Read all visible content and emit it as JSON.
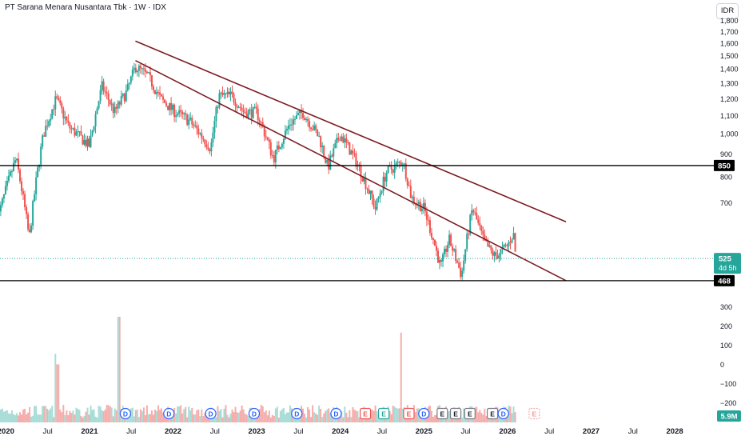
{
  "header": {
    "title": "PT Sarana Menara Nusantara Tbk · 1W · IDX",
    "currency_button": "IDR"
  },
  "chart_data": {
    "type": "candlestick",
    "y_axis": {
      "min": 440,
      "max": 1850,
      "ticks": [
        700,
        800,
        900,
        1000,
        1100,
        1200,
        1300,
        1400,
        1500,
        1600,
        1700,
        1800
      ]
    },
    "x_axis": {
      "ticks": [
        "2020",
        "Jul",
        "2021",
        "Jul",
        "2022",
        "Jul",
        "2023",
        "Jul",
        "2024",
        "Jul",
        "2025",
        "Jul",
        "2026",
        "Jul",
        "2027",
        "Jul",
        "2028"
      ]
    },
    "price_series_anchors": [
      {
        "t": 2019.9,
        "v": 640
      },
      {
        "t": 2020.12,
        "v": 880
      },
      {
        "t": 2020.28,
        "v": 580
      },
      {
        "t": 2020.45,
        "v": 1000
      },
      {
        "t": 2020.6,
        "v": 1200
      },
      {
        "t": 2020.75,
        "v": 1040
      },
      {
        "t": 2021.0,
        "v": 940
      },
      {
        "t": 2021.15,
        "v": 1280
      },
      {
        "t": 2021.3,
        "v": 1120
      },
      {
        "t": 2021.45,
        "v": 1250
      },
      {
        "t": 2021.55,
        "v": 1420
      },
      {
        "t": 2021.7,
        "v": 1350
      },
      {
        "t": 2021.85,
        "v": 1200
      },
      {
        "t": 2022.0,
        "v": 1130
      },
      {
        "t": 2022.2,
        "v": 1070
      },
      {
        "t": 2022.45,
        "v": 930
      },
      {
        "t": 2022.55,
        "v": 1220
      },
      {
        "t": 2022.7,
        "v": 1220
      },
      {
        "t": 2022.85,
        "v": 1120
      },
      {
        "t": 2023.0,
        "v": 1120
      },
      {
        "t": 2023.2,
        "v": 880
      },
      {
        "t": 2023.4,
        "v": 1060
      },
      {
        "t": 2023.55,
        "v": 1120
      },
      {
        "t": 2023.75,
        "v": 980
      },
      {
        "t": 2023.85,
        "v": 840
      },
      {
        "t": 2024.0,
        "v": 1000
      },
      {
        "t": 2024.2,
        "v": 860
      },
      {
        "t": 2024.42,
        "v": 680
      },
      {
        "t": 2024.55,
        "v": 820
      },
      {
        "t": 2024.75,
        "v": 870
      },
      {
        "t": 2024.85,
        "v": 720
      },
      {
        "t": 2025.0,
        "v": 680
      },
      {
        "t": 2025.2,
        "v": 500
      },
      {
        "t": 2025.3,
        "v": 580
      },
      {
        "t": 2025.45,
        "v": 480
      },
      {
        "t": 2025.58,
        "v": 680
      },
      {
        "t": 2025.72,
        "v": 570
      },
      {
        "t": 2025.85,
        "v": 530
      },
      {
        "t": 2026.0,
        "v": 560
      },
      {
        "t": 2026.07,
        "v": 600
      },
      {
        "t": 2026.1,
        "v": 525
      }
    ],
    "horizontal_levels": [
      {
        "label": "850",
        "value": 850,
        "color": "#000000"
      },
      {
        "label": "468",
        "value": 468,
        "color": "#000000"
      }
    ],
    "trendlines": [
      {
        "from": {
          "t": 2021.55,
          "v": 1620
        },
        "to": {
          "t": 2026.7,
          "v": 635
        },
        "color": "#7b1c22"
      },
      {
        "from": {
          "t": 2021.55,
          "v": 1465
        },
        "to": {
          "t": 2026.7,
          "v": 468
        },
        "color": "#7b1c22"
      }
    ],
    "current_price": {
      "label": "525",
      "countdown": "4d 5h",
      "value": 525,
      "color": "#26a69a"
    },
    "volume": {
      "axis_ticks": [
        "300",
        "200",
        "100",
        "0",
        "−100",
        "−200"
      ],
      "last_label": "5.9M",
      "spikes": [
        {
          "t": 2020.6,
          "rel": 0.65
        },
        {
          "t": 2021.35,
          "rel": 1.0
        },
        {
          "t": 2020.62,
          "rel": 0.55
        },
        {
          "t": 2024.72,
          "rel": 0.85
        }
      ]
    },
    "event_markers": [
      {
        "t": 2021.43,
        "label": "D",
        "kind": "dividend"
      },
      {
        "t": 2021.95,
        "label": "D",
        "kind": "dividend"
      },
      {
        "t": 2022.45,
        "label": "D",
        "kind": "dividend"
      },
      {
        "t": 2022.97,
        "label": "D",
        "kind": "dividend"
      },
      {
        "t": 2023.48,
        "label": "D",
        "kind": "dividend"
      },
      {
        "t": 2023.95,
        "label": "D",
        "kind": "dividend"
      },
      {
        "t": 2024.3,
        "label": "E",
        "kind": "earnings-miss"
      },
      {
        "t": 2024.52,
        "label": "E",
        "kind": "earnings-beat"
      },
      {
        "t": 2024.82,
        "label": "E",
        "kind": "earnings-miss"
      },
      {
        "t": 2025.0,
        "label": "D",
        "kind": "dividend"
      },
      {
        "t": 2025.22,
        "label": "E",
        "kind": "earnings"
      },
      {
        "t": 2025.38,
        "label": "E",
        "kind": "earnings"
      },
      {
        "t": 2025.55,
        "label": "E",
        "kind": "earnings"
      },
      {
        "t": 2025.82,
        "label": "E",
        "kind": "earnings"
      },
      {
        "t": 2025.95,
        "label": "D",
        "kind": "dividend"
      },
      {
        "t": 2026.32,
        "label": "E",
        "kind": "upcoming"
      }
    ]
  }
}
